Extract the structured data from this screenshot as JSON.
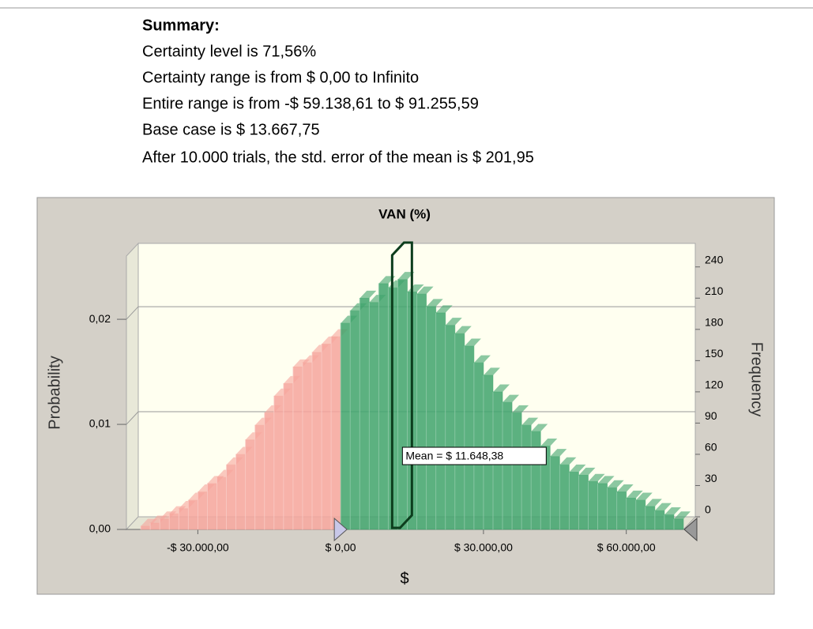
{
  "summary": {
    "heading": "Summary:",
    "lines": [
      "Certainty level is 71,56%",
      "Certainty range is from $ 0,00  to Infinito",
      "Entire range is from -$ 59.138,61 to $ 91.255,59",
      "Base case is $ 13.667,75",
      "After 10.000 trials, the std. error of the mean is $ 201,95"
    ]
  },
  "chart_data": {
    "type": "histogram",
    "title": "VAN (%)",
    "x_label": "$",
    "y_label": "Probability",
    "y2_label": "Frequency",
    "bins": [
      -42000,
      -40000,
      -38000,
      -36000,
      -34000,
      -32000,
      -30000,
      -28000,
      -26000,
      -24000,
      -22000,
      -20000,
      -18000,
      -16000,
      -14000,
      -12000,
      -10000,
      -8000,
      -6000,
      -4000,
      -2000,
      0,
      2000,
      4000,
      6000,
      8000,
      10000,
      12000,
      14000,
      16000,
      18000,
      20000,
      22000,
      24000,
      26000,
      28000,
      30000,
      32000,
      34000,
      36000,
      38000,
      40000,
      42000,
      44000,
      46000,
      48000,
      50000,
      52000,
      54000,
      56000,
      58000,
      60000,
      62000,
      64000,
      66000,
      68000,
      70000,
      72000
    ],
    "series": [
      {
        "name": "Frequency",
        "axis": "y2",
        "values": [
          3,
          6,
          10,
          15,
          20,
          28,
          36,
          44,
          50,
          62,
          72,
          86,
          100,
          112,
          128,
          140,
          156,
          160,
          170,
          178,
          185,
          198,
          210,
          222,
          218,
          236,
          232,
          240,
          228,
          226,
          214,
          208,
          196,
          188,
          176,
          160,
          148,
          132,
          122,
          112,
          100,
          94,
          80,
          70,
          62,
          55,
          52,
          46,
          44,
          40,
          36,
          30,
          28,
          22,
          18,
          14,
          10
        ]
      }
    ],
    "color_outside": "#f6a59c",
    "color_certainty": "#3fa36c",
    "certainty_start": 0,
    "mean": 11648.38,
    "mean_label": "Mean = $ 11.648,38",
    "xlim": [
      -45000,
      72000
    ],
    "xticks": [
      {
        "value": -30000,
        "label": "-$ 30.000,00"
      },
      {
        "value": 0,
        "label": "$ 0,00"
      },
      {
        "value": 30000,
        "label": "$ 30.000,00"
      },
      {
        "value": 60000,
        "label": "$ 60.000,00"
      }
    ],
    "ylim": [
      0,
      0.027
    ],
    "yticks": [
      {
        "value": 0,
        "label": "0,00"
      },
      {
        "value": 0.01,
        "label": "0,01"
      },
      {
        "value": 0.02,
        "label": "0,02"
      }
    ],
    "y2lim": [
      0,
      255
    ],
    "y2ticks": [
      0,
      30,
      60,
      90,
      120,
      150,
      180,
      210,
      240
    ],
    "grid": true
  }
}
